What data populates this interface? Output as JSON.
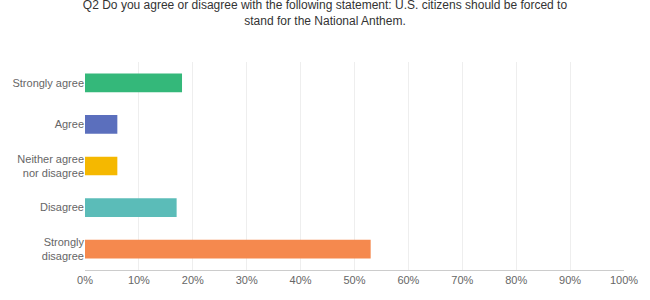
{
  "chart_data": {
    "type": "bar",
    "orientation": "horizontal",
    "title": "Q2 Do you agree or disagree with the following statement: U.S. citizens should be forced to\nstand for the National Anthem.",
    "categories": [
      "Strongly agree",
      "Agree",
      "Neither agree\nnor disagree",
      "Disagree",
      "Strongly\ndisagree"
    ],
    "values": [
      18,
      6,
      6,
      17,
      53
    ],
    "colors": [
      "#34b87a",
      "#5b6fbd",
      "#f5b800",
      "#5bbcb8",
      "#f5894e"
    ],
    "xlim": [
      0,
      100
    ],
    "xticks": [
      {
        "value": 0,
        "label": "0%"
      },
      {
        "value": 10,
        "label": "10%"
      },
      {
        "value": 20,
        "label": "20%"
      },
      {
        "value": 30,
        "label": "30%"
      },
      {
        "value": 40,
        "label": "40%"
      },
      {
        "value": 50,
        "label": "50%"
      },
      {
        "value": 60,
        "label": "60%"
      },
      {
        "value": 70,
        "label": "70%"
      },
      {
        "value": 80,
        "label": "80%"
      },
      {
        "value": 90,
        "label": "90%"
      },
      {
        "value": 100,
        "label": "100%"
      }
    ],
    "grid": true
  }
}
